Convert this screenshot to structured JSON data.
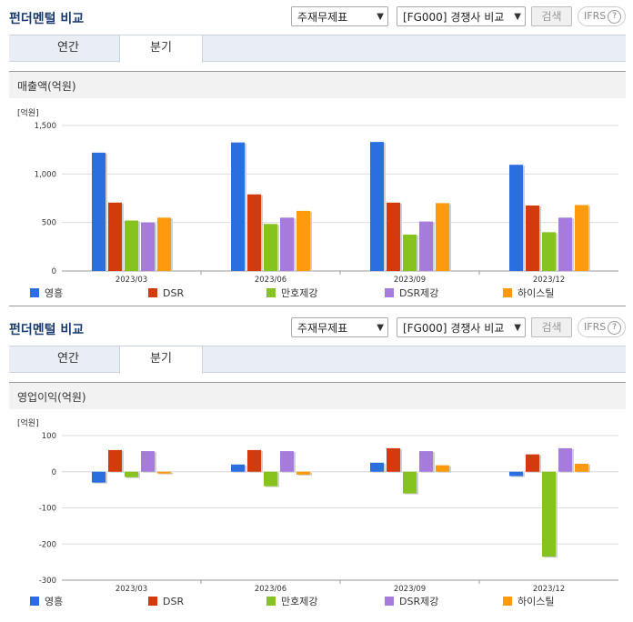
{
  "panels": [
    {
      "title": "펀더멘털 비교",
      "select1": "주재무제표",
      "select2": "[FG000] 경쟁사 비교",
      "search_label": "검색",
      "ifrs_label": "IFRS",
      "help_glyph": "?",
      "tabs": [
        "연간",
        "분기"
      ],
      "active_tab": 1,
      "section_title": "매출액(억원)"
    },
    {
      "title": "펀더멘털 비교",
      "select1": "주재무제표",
      "select2": "[FG000] 경쟁사 비교",
      "search_label": "검색",
      "ifrs_label": "IFRS",
      "help_glyph": "?",
      "tabs": [
        "연간",
        "분기"
      ],
      "active_tab": 1,
      "section_title": "영업이익(억원)"
    }
  ],
  "chart_data": [
    {
      "type": "bar",
      "title": "매출액(억원)",
      "unit_label": "[억원]",
      "categories": [
        "2023/03",
        "2023/06",
        "2023/09",
        "2023/12"
      ],
      "ylim": [
        0,
        1500
      ],
      "yticks": [
        0,
        500,
        1000,
        1500
      ],
      "ytick_labels": [
        "0",
        "500",
        "1,000",
        "1,500"
      ],
      "legend_position": "bottom",
      "series": [
        {
          "name": "영흥",
          "color": "#2a6ee0",
          "values": [
            1220,
            1325,
            1330,
            1095
          ]
        },
        {
          "name": "DSR",
          "color": "#d33a0e",
          "values": [
            705,
            790,
            705,
            675
          ]
        },
        {
          "name": "만호제강",
          "color": "#86c31e",
          "values": [
            520,
            485,
            375,
            400
          ]
        },
        {
          "name": "DSR제강",
          "color": "#a57bdb",
          "values": [
            500,
            550,
            510,
            550
          ]
        },
        {
          "name": "하이스틸",
          "color": "#ff9a0d",
          "values": [
            550,
            620,
            700,
            680
          ]
        }
      ]
    },
    {
      "type": "bar",
      "title": "영업이익(억원)",
      "unit_label": "[억원]",
      "categories": [
        "2023/03",
        "2023/06",
        "2023/09",
        "2023/12"
      ],
      "ylim": [
        -300,
        100
      ],
      "yticks": [
        -300,
        -200,
        -100,
        0,
        100
      ],
      "ytick_labels": [
        "-300",
        "-200",
        "-100",
        "0",
        "100"
      ],
      "legend_position": "bottom",
      "series": [
        {
          "name": "영흥",
          "color": "#2a6ee0",
          "values": [
            -30,
            20,
            25,
            -12
          ]
        },
        {
          "name": "DSR",
          "color": "#d33a0e",
          "values": [
            60,
            60,
            65,
            48
          ]
        },
        {
          "name": "만호제강",
          "color": "#86c31e",
          "values": [
            -15,
            -40,
            -60,
            -235
          ]
        },
        {
          "name": "DSR제강",
          "color": "#a57bdb",
          "values": [
            57,
            57,
            57,
            65
          ]
        },
        {
          "name": "하이스틸",
          "color": "#ff9a0d",
          "values": [
            -5,
            -8,
            18,
            22
          ]
        }
      ]
    }
  ]
}
